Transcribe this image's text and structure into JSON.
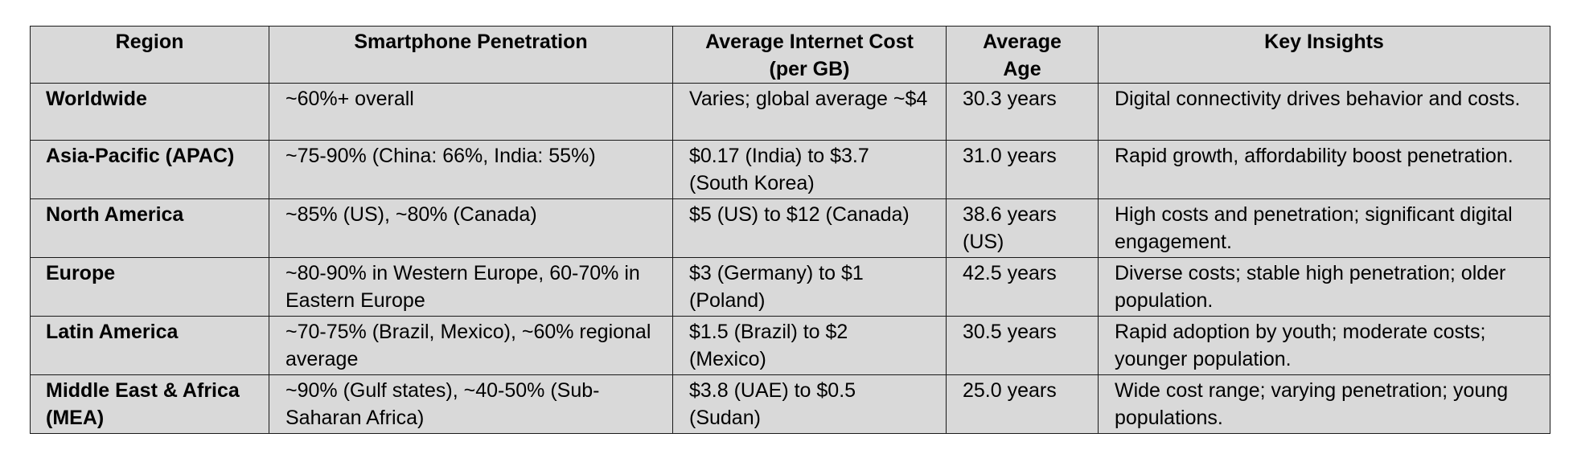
{
  "table": {
    "headers": [
      "Region",
      "Smartphone Penetration",
      "Average Internet Cost (per GB)",
      "Average Age",
      "Key Insights"
    ],
    "rows": [
      {
        "region": "Worldwide",
        "penetration": "~60%+ overall",
        "cost": "Varies; global average ~$4",
        "age": "30.3 years",
        "insights": "Digital connectivity drives behavior and costs."
      },
      {
        "region": "Asia-Pacific (APAC)",
        "penetration": "~75-90% (China: 66%, India: 55%)",
        "cost": "$0.17 (India) to $3.7 (South Korea)",
        "age": "31.0 years",
        "insights": "Rapid growth, affordability boost penetration."
      },
      {
        "region": "North America",
        "penetration": "~85% (US), ~80% (Canada)",
        "cost": "$5 (US) to $12 (Canada)",
        "age": "38.6 years (US)",
        "insights": "High costs and penetration; significant digital engagement."
      },
      {
        "region": "Europe",
        "penetration": "~80-90% in Western Europe, 60-70% in Eastern Europe",
        "cost": "$3 (Germany) to $1 (Poland)",
        "age": "42.5 years",
        "insights": "Diverse costs; stable high penetration; older population."
      },
      {
        "region": "Latin America",
        "penetration": "~70-75% (Brazil, Mexico), ~60% regional average",
        "cost": "$1.5 (Brazil) to $2 (Mexico)",
        "age": "30.5 years",
        "insights": "Rapid adoption by youth; moderate costs; younger population."
      },
      {
        "region": "Middle East & Africa (MEA)",
        "penetration": "~90% (Gulf states), ~40-50% (Sub-Saharan Africa)",
        "cost": "$3.8 (UAE) to $0.5 (Sudan)",
        "age": "25.0 years",
        "insights": "Wide cost range; varying penetration; young populations."
      }
    ]
  }
}
